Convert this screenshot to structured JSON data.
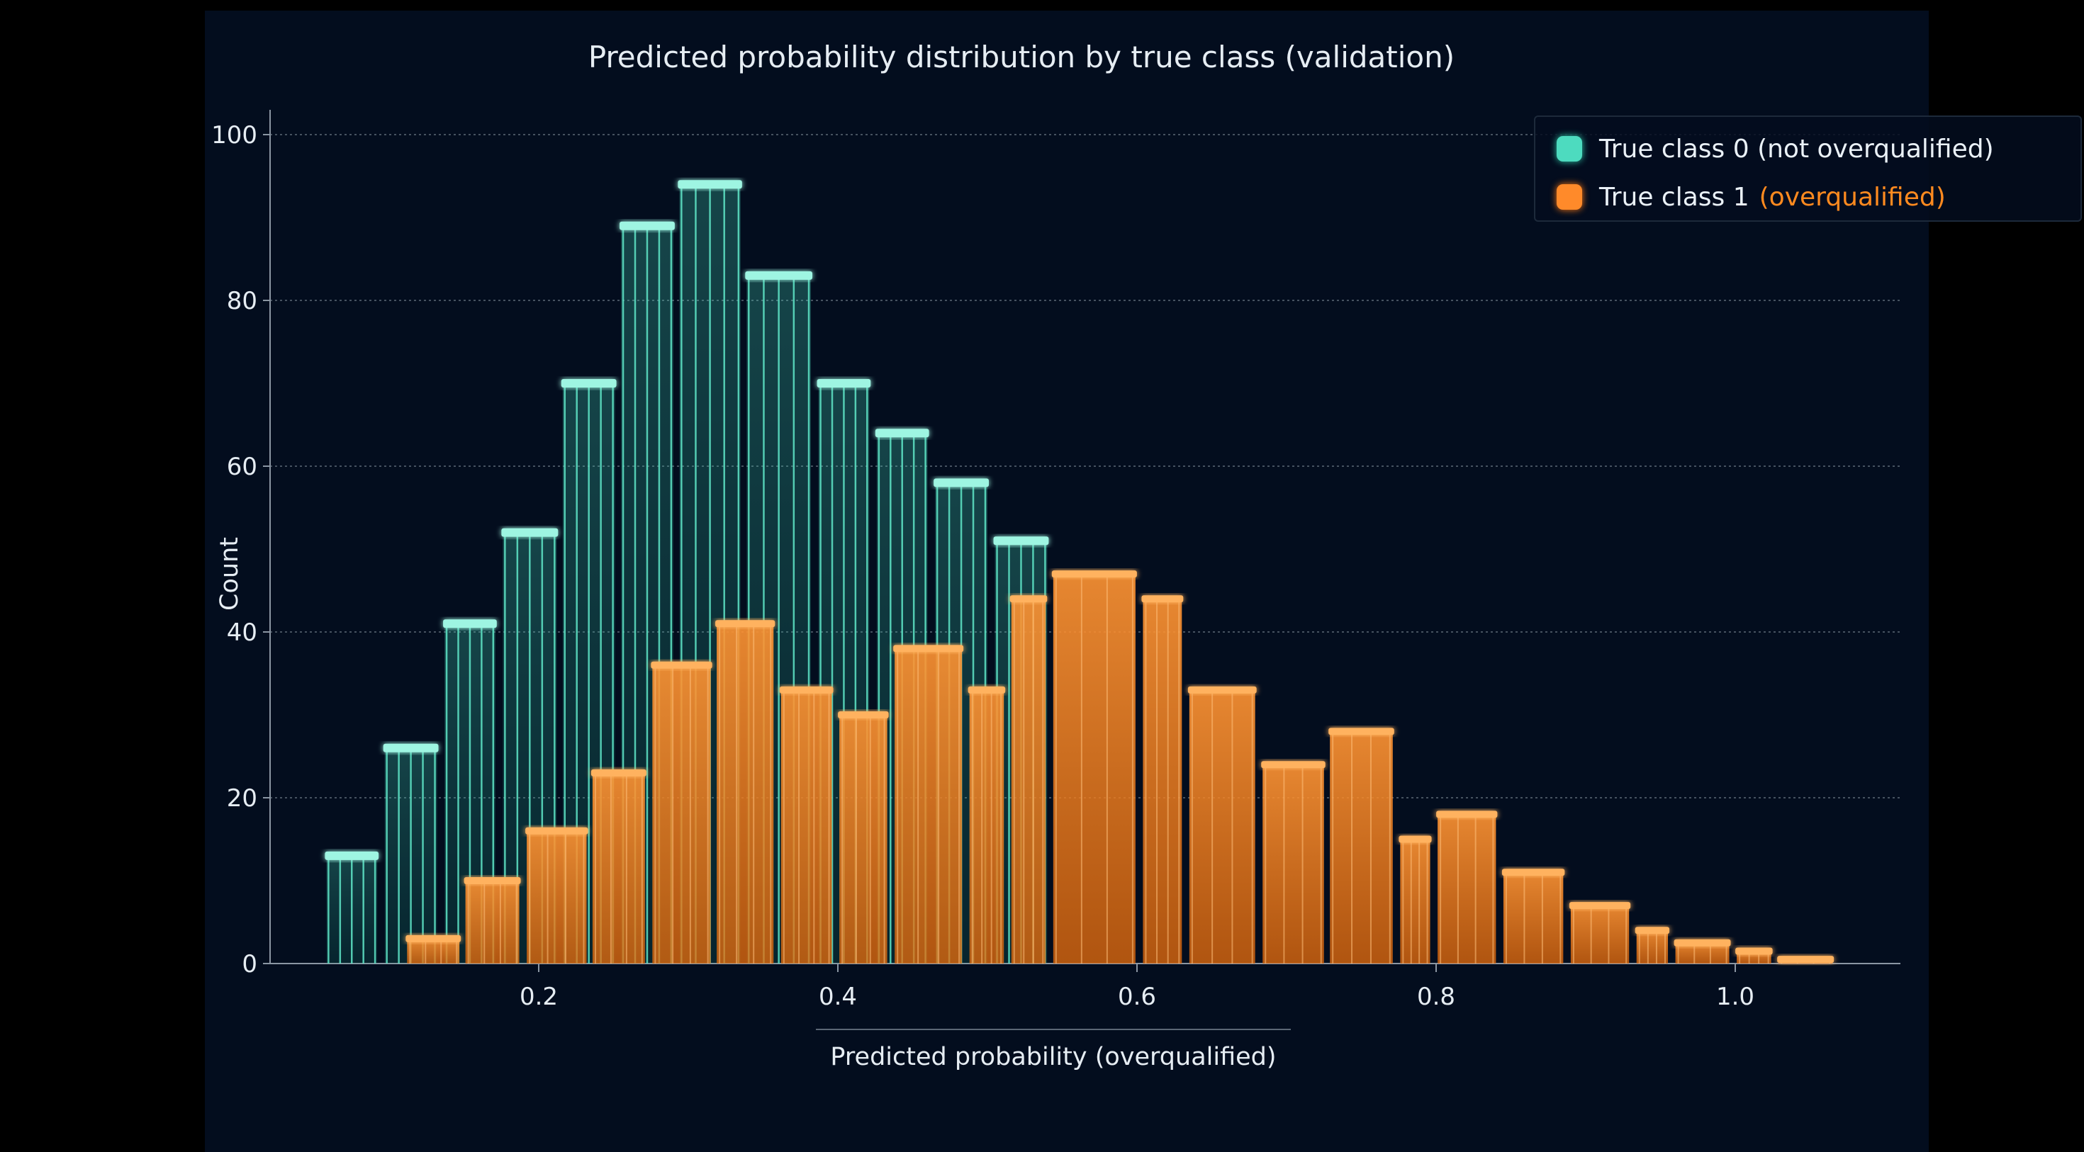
{
  "chart_data": {
    "type": "bar",
    "title": "Predicted probability distribution by true class (validation)",
    "xlabel": "Predicted probability (overqualified)",
    "ylabel": "Count",
    "xlim": [
      0.02,
      1.11
    ],
    "ylim": [
      0,
      100
    ],
    "x_ticks": [
      "0.2",
      "0.4",
      "0.6",
      "0.8",
      "1.0"
    ],
    "x_tick_values": [
      0.2,
      0.4,
      0.6,
      0.8,
      1.0
    ],
    "y_ticks": [
      "0",
      "20",
      "40",
      "60",
      "80",
      "100"
    ],
    "y_tick_values": [
      0,
      20,
      40,
      60,
      80,
      100
    ],
    "grid": "horizontal dotted",
    "legend": "top-right",
    "series": [
      {
        "name": "True class 0 (not overqualified)",
        "color": "#3fd9b8",
        "bins": [
          {
            "x0": 0.058,
            "x1": 0.092,
            "value": 13
          },
          {
            "x0": 0.097,
            "x1": 0.132,
            "value": 26
          },
          {
            "x0": 0.137,
            "x1": 0.171,
            "value": 41
          },
          {
            "x0": 0.176,
            "x1": 0.212,
            "value": 52
          },
          {
            "x0": 0.216,
            "x1": 0.251,
            "value": 70
          },
          {
            "x0": 0.255,
            "x1": 0.29,
            "value": 89
          },
          {
            "x0": 0.294,
            "x1": 0.335,
            "value": 94
          },
          {
            "x0": 0.339,
            "x1": 0.382,
            "value": 83
          },
          {
            "x0": 0.387,
            "x1": 0.421,
            "value": 70
          },
          {
            "x0": 0.426,
            "x1": 0.46,
            "value": 64
          },
          {
            "x0": 0.465,
            "x1": 0.5,
            "value": 58
          },
          {
            "x0": 0.505,
            "x1": 0.54,
            "value": 51
          }
        ]
      },
      {
        "name": "True class 1 (overqualified)",
        "color": "#ff8a1f",
        "bins": [
          {
            "x0": 0.112,
            "x1": 0.147,
            "value": 3
          },
          {
            "x0": 0.151,
            "x1": 0.187,
            "value": 10
          },
          {
            "x0": 0.192,
            "x1": 0.232,
            "value": 16
          },
          {
            "x0": 0.236,
            "x1": 0.271,
            "value": 23
          },
          {
            "x0": 0.276,
            "x1": 0.315,
            "value": 36
          },
          {
            "x0": 0.319,
            "x1": 0.357,
            "value": 41
          },
          {
            "x0": 0.362,
            "x1": 0.396,
            "value": 33
          },
          {
            "x0": 0.401,
            "x1": 0.433,
            "value": 30
          },
          {
            "x0": 0.438,
            "x1": 0.483,
            "value": 38
          },
          {
            "x0": 0.488,
            "x1": 0.511,
            "value": 33
          },
          {
            "x0": 0.516,
            "x1": 0.539,
            "value": 44
          },
          {
            "x0": 0.544,
            "x1": 0.599,
            "value": 47
          },
          {
            "x0": 0.604,
            "x1": 0.63,
            "value": 44
          },
          {
            "x0": 0.635,
            "x1": 0.679,
            "value": 33
          },
          {
            "x0": 0.684,
            "x1": 0.725,
            "value": 24
          },
          {
            "x0": 0.729,
            "x1": 0.771,
            "value": 28
          },
          {
            "x0": 0.776,
            "x1": 0.796,
            "value": 15
          },
          {
            "x0": 0.801,
            "x1": 0.84,
            "value": 18
          },
          {
            "x0": 0.845,
            "x1": 0.885,
            "value": 11
          },
          {
            "x0": 0.89,
            "x1": 0.929,
            "value": 7
          },
          {
            "x0": 0.934,
            "x1": 0.955,
            "value": 4
          },
          {
            "x0": 0.96,
            "x1": 0.996,
            "value": 2.5
          },
          {
            "x0": 1.001,
            "x1": 1.024,
            "value": 1.5
          },
          {
            "x0": 1.029,
            "x1": 1.065,
            "value": 0.5
          }
        ]
      }
    ]
  },
  "legend": {
    "class0_label": "True class 0 (not overqualified)",
    "class1_prefix": "True class 1",
    "class1_suffix": "(overqualified)"
  }
}
